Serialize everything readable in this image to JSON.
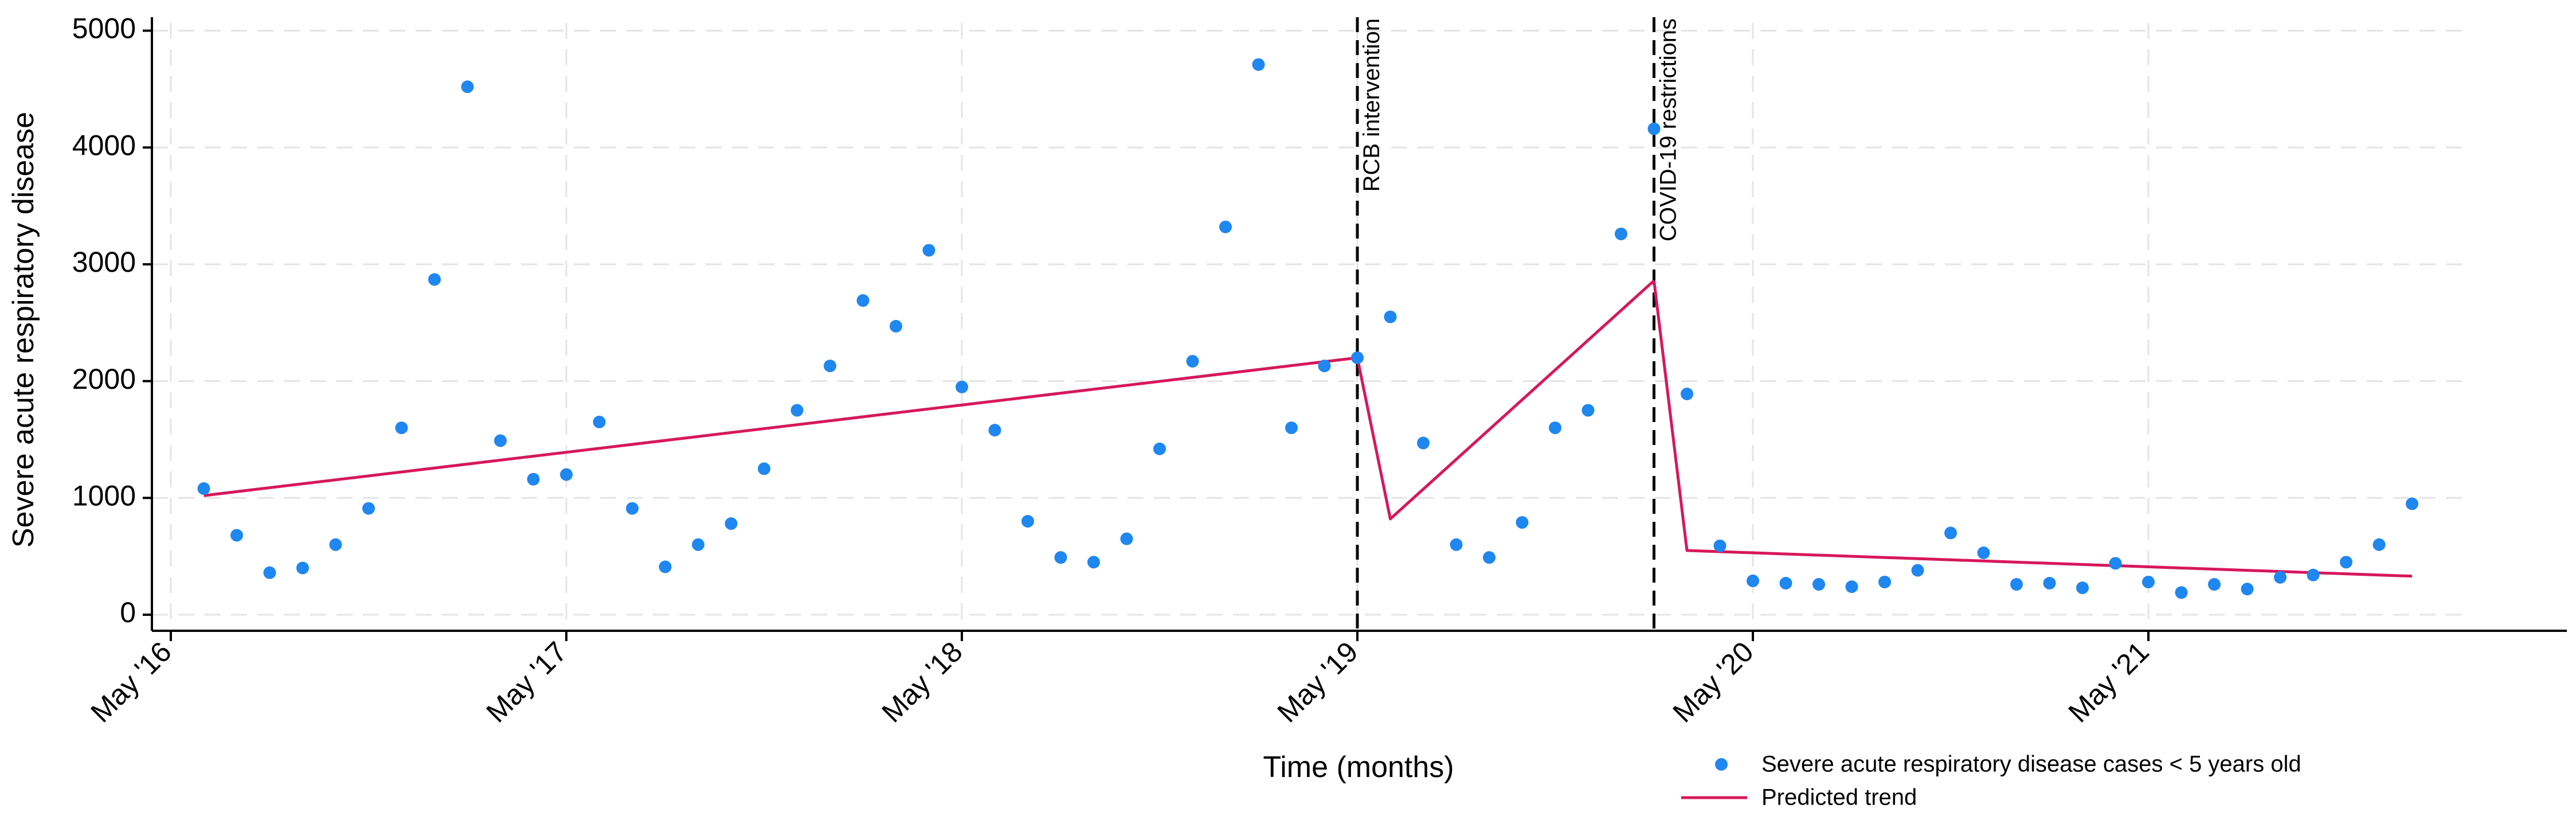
{
  "chart_data": {
    "type": "scatter",
    "title": "",
    "xlabel": "Time (months)",
    "ylabel": "Severe acute respiratory disease",
    "ylim": [
      -150,
      5150
    ],
    "yticks": [
      0,
      1000,
      2000,
      3000,
      4000,
      5000
    ],
    "xlim": [
      -1,
      69.5
    ],
    "xticks": [
      {
        "x": 0,
        "label": "May '16"
      },
      {
        "x": 12,
        "label": "May '17"
      },
      {
        "x": 24,
        "label": "May '18"
      },
      {
        "x": 36,
        "label": "May '19"
      },
      {
        "x": 48,
        "label": "May '20"
      },
      {
        "x": 60,
        "label": "May '21"
      }
    ],
    "grid": true,
    "legend_position": "bottom-right",
    "series": [
      {
        "name": "Severe acute respiratory disease cases < 5 years old",
        "kind": "scatter",
        "color": "#1f87f0",
        "points": [
          [
            1,
            1080
          ],
          [
            2,
            680
          ],
          [
            3,
            360
          ],
          [
            4,
            400
          ],
          [
            5,
            600
          ],
          [
            6,
            910
          ],
          [
            7,
            1600
          ],
          [
            8,
            2870
          ],
          [
            9,
            4520
          ],
          [
            10,
            1490
          ],
          [
            11,
            1160
          ],
          [
            12,
            1200
          ],
          [
            13,
            1650
          ],
          [
            14,
            910
          ],
          [
            15,
            410
          ],
          [
            16,
            600
          ],
          [
            17,
            780
          ],
          [
            18,
            1250
          ],
          [
            19,
            1750
          ],
          [
            20,
            2130
          ],
          [
            21,
            2690
          ],
          [
            22,
            2470
          ],
          [
            23,
            3120
          ],
          [
            24,
            1950
          ],
          [
            25,
            1580
          ],
          [
            26,
            800
          ],
          [
            27,
            490
          ],
          [
            28,
            450
          ],
          [
            29,
            650
          ],
          [
            30,
            1420
          ],
          [
            31,
            2170
          ],
          [
            32,
            3320
          ],
          [
            33,
            4710
          ],
          [
            34,
            1600
          ],
          [
            35,
            2130
          ],
          [
            36,
            2200
          ],
          [
            37,
            2550
          ],
          [
            38,
            1470
          ],
          [
            39,
            600
          ],
          [
            40,
            490
          ],
          [
            41,
            790
          ],
          [
            42,
            1600
          ],
          [
            43,
            1750
          ],
          [
            44,
            3260
          ],
          [
            45,
            4160
          ],
          [
            46,
            1890
          ],
          [
            47,
            590
          ],
          [
            48,
            290
          ],
          [
            49,
            270
          ],
          [
            50,
            260
          ],
          [
            51,
            240
          ],
          [
            52,
            280
          ],
          [
            53,
            380
          ],
          [
            54,
            700
          ],
          [
            55,
            530
          ],
          [
            56,
            260
          ],
          [
            57,
            270
          ],
          [
            58,
            230
          ],
          [
            59,
            440
          ],
          [
            60,
            280
          ],
          [
            61,
            190
          ],
          [
            62,
            260
          ],
          [
            63,
            220
          ],
          [
            64,
            320
          ],
          [
            65,
            340
          ],
          [
            66,
            450
          ],
          [
            67,
            600
          ],
          [
            68,
            950
          ]
        ]
      },
      {
        "name": "Predicted trend",
        "kind": "line",
        "color": "#d6185b",
        "segments": [
          [
            [
              1,
              1020
            ],
            [
              36,
              2200
            ]
          ],
          [
            [
              36,
              2200
            ],
            [
              37,
              820
            ],
            [
              45,
              2860
            ]
          ],
          [
            [
              45,
              2860
            ],
            [
              46,
              550
            ],
            [
              68,
              330
            ]
          ]
        ]
      }
    ],
    "annotations": [
      {
        "x": 36,
        "label": "RCB intervention"
      },
      {
        "x": 45,
        "label": "COVID-19 restrictions"
      }
    ]
  }
}
